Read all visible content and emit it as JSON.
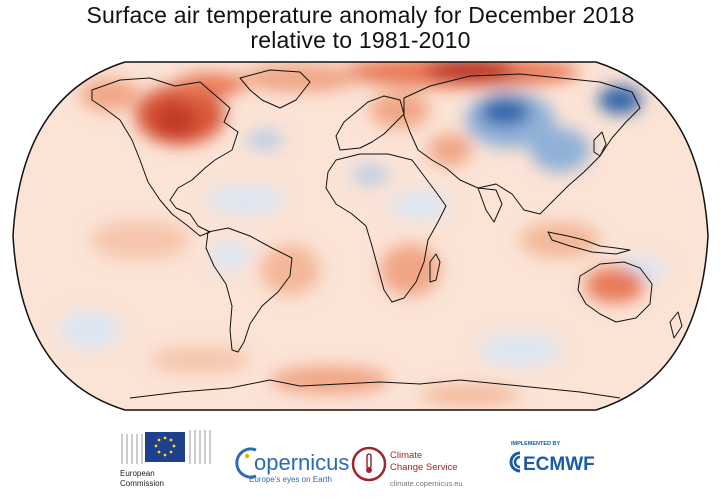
{
  "title": {
    "line1": "Surface air temperature anomaly for December 2018",
    "line2": "relative to 1981-2010"
  },
  "colors": {
    "warm_light": "#f9d8c6",
    "warm_mid": "#f0a685",
    "warm_strong": "#d9583b",
    "warm_extreme": "#b3261e",
    "cool_light": "#dbe6f3",
    "cool_mid": "#8fb0d8",
    "cool_strong": "#2f63a8",
    "coast": "#111111",
    "eu_blue": "#1f3f8f",
    "copernicus_blue": "#2b6bb4",
    "c3s_red": "#a0262b",
    "ecmwf_blue": "#1b5ba6"
  },
  "logos": {
    "eu": {
      "line1": "European",
      "line2": "Commission"
    },
    "copernicus": {
      "name": "opernicus",
      "tagline": "Europe's eyes on Earth"
    },
    "c3s": {
      "line1": "Climate",
      "line2": "Change Service",
      "url": "climate.copernicus.eu"
    },
    "ecmwf": {
      "caption": "IMPLEMENTED BY",
      "name": "ECMWF"
    }
  }
}
